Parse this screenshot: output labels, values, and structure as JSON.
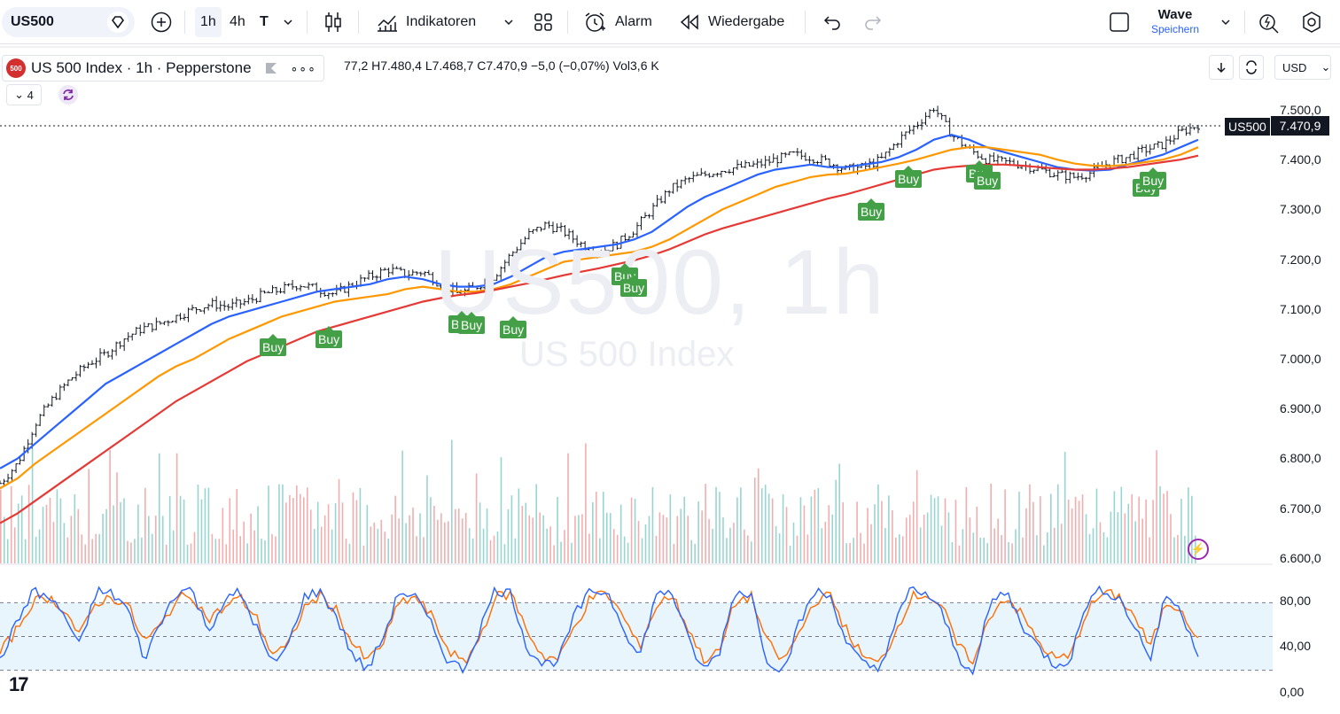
{
  "toolbar": {
    "symbol": "US500",
    "timeframes": [
      "1h",
      "4h",
      "T"
    ],
    "indicators_label": "Indikatoren",
    "alert_label": "Alarm",
    "replay_label": "Wiedergabe",
    "layout_name": "Wave",
    "save_label": "Speichern"
  },
  "legend": {
    "logo_text": "500",
    "title": "US 500 Index · 1h · Pepperstone",
    "ohlc": "77,2  H7.480,4  L7.468,7  C7.470,9  −5,0 (−0,07%)  Vol3,6 K",
    "collapsed_count": "4"
  },
  "currency": "USD",
  "watermark": {
    "symbol_tf": "US500, 1h",
    "name": "US 500 Index"
  },
  "price_tag": {
    "symbol": "US500",
    "price": "7.470,9"
  },
  "colors": {
    "ema_fast": "#2962ff",
    "ema_mid": "#ff9800",
    "ema_slow": "#e53935",
    "vol_up": "#80cbc4",
    "vol_down": "#ef9a9a",
    "osc_k": "#2962ff",
    "osc_d": "#ff6d00",
    "buy": "#43a047"
  },
  "chart_data": {
    "type": "line",
    "price_axis_ticks": [
      "7.500,0",
      "7.400,0",
      "7.300,0",
      "7.200,0",
      "7.100,0",
      "7.000,0",
      "6.900,0",
      "6.800,0",
      "6.700,0",
      "6.600,0"
    ],
    "ylim": [
      6600,
      7540
    ],
    "series": [
      {
        "name": "",
        "values": [
          6750,
          6790,
          6870,
          6920,
          6960,
          6990,
          7010,
          7040,
          7060,
          7070,
          7085,
          7100,
          7110,
          7105,
          7115,
          7130,
          7140,
          7150,
          7140,
          7130,
          7150,
          7165,
          7180,
          7170,
          7175,
          7150,
          7130,
          7145,
          7165,
          7210,
          7250,
          7270,
          7255,
          7230,
          7215,
          7230,
          7260,
          7300,
          7340,
          7360,
          7370,
          7380,
          7385,
          7390,
          7400,
          7410,
          7405,
          7395,
          7380,
          7385,
          7400,
          7440,
          7470,
          7505,
          7450,
          7420,
          7400,
          7395,
          7390,
          7380,
          7370,
          7365,
          7375,
          7395,
          7405,
          7420,
          7430,
          7455,
          7470
        ]
      },
      {
        "name": "",
        "values": [
          6780,
          6800,
          6830,
          6860,
          6890,
          6920,
          6950,
          6970,
          6990,
          7010,
          7030,
          7050,
          7070,
          7085,
          7095,
          7105,
          7115,
          7125,
          7135,
          7140,
          7145,
          7150,
          7160,
          7165,
          7160,
          7150,
          7145,
          7145,
          7150,
          7165,
          7185,
          7205,
          7215,
          7220,
          7225,
          7230,
          7240,
          7255,
          7280,
          7305,
          7325,
          7340,
          7355,
          7370,
          7380,
          7385,
          7390,
          7385,
          7385,
          7390,
          7395,
          7405,
          7420,
          7440,
          7450,
          7440,
          7425,
          7415,
          7405,
          7395,
          7385,
          7380,
          7378,
          7380,
          7390,
          7400,
          7410,
          7425,
          7440
        ]
      },
      {
        "name": "",
        "values": [
          6740,
          6760,
          6790,
          6815,
          6840,
          6865,
          6890,
          6915,
          6940,
          6965,
          6985,
          7000,
          7020,
          7040,
          7055,
          7070,
          7085,
          7095,
          7105,
          7115,
          7120,
          7125,
          7130,
          7140,
          7145,
          7140,
          7135,
          7135,
          7140,
          7150,
          7165,
          7180,
          7195,
          7200,
          7205,
          7210,
          7215,
          7225,
          7240,
          7260,
          7280,
          7300,
          7315,
          7330,
          7345,
          7355,
          7365,
          7370,
          7372,
          7378,
          7385,
          7392,
          7400,
          7410,
          7420,
          7425,
          7425,
          7420,
          7415,
          7410,
          7400,
          7392,
          7388,
          7387,
          7390,
          7395,
          7400,
          7410,
          7425
        ]
      },
      {
        "name": "",
        "values": [
          6670,
          6690,
          6715,
          6740,
          6765,
          6790,
          6815,
          6840,
          6865,
          6890,
          6915,
          6935,
          6955,
          6975,
          6995,
          7010,
          7025,
          7040,
          7055,
          7065,
          7075,
          7085,
          7095,
          7105,
          7115,
          7122,
          7128,
          7132,
          7138,
          7145,
          7152,
          7160,
          7168,
          7175,
          7182,
          7190,
          7198,
          7208,
          7220,
          7235,
          7250,
          7262,
          7272,
          7282,
          7292,
          7302,
          7312,
          7322,
          7330,
          7340,
          7350,
          7360,
          7370,
          7380,
          7385,
          7388,
          7390,
          7390,
          7388,
          7385,
          7382,
          7380,
          7380,
          7382,
          7385,
          7390,
          7395,
          7400,
          7408
        ]
      }
    ],
    "buy_signals": [
      {
        "label": "Buy"
      },
      {
        "label": "Buy"
      },
      {
        "label": "Buy"
      },
      {
        "label": "Buy"
      },
      {
        "label": "Buy"
      },
      {
        "label": "Buy"
      },
      {
        "label": "Buy"
      },
      {
        "label": "Buy"
      },
      {
        "label": "Buy"
      },
      {
        "label": "Buy"
      },
      {
        "label": "Buy"
      },
      {
        "label": "Buy"
      },
      {
        "label": "Buy"
      },
      {
        "label": "Buy"
      }
    ],
    "oscillator": {
      "ticks": [
        "80,00",
        "40,00",
        "0,00"
      ],
      "ylim": [
        0,
        100
      ],
      "band": [
        20,
        80
      ],
      "k_values": [
        30,
        60,
        90,
        85,
        70,
        40,
        90,
        88,
        75,
        30,
        60,
        90,
        92,
        55,
        80,
        90,
        60,
        25,
        40,
        85,
        90,
        70,
        35,
        20,
        50,
        90,
        85,
        60,
        30,
        20,
        55,
        92,
        88,
        40,
        25,
        30,
        70,
        90,
        90,
        60,
        30,
        85,
        92,
        50,
        20,
        35,
        90,
        88,
        30,
        20,
        60,
        90,
        85,
        45,
        25,
        20,
        60,
        92,
        88,
        70,
        30,
        20,
        80,
        90,
        60,
        40,
        25,
        30,
        80,
        92,
        85,
        60,
        30,
        88,
        70,
        35
      ],
      "d_values": [
        35,
        55,
        80,
        85,
        75,
        50,
        80,
        85,
        78,
        45,
        58,
        82,
        88,
        65,
        75,
        85,
        68,
        35,
        40,
        75,
        86,
        75,
        45,
        28,
        45,
        80,
        85,
        68,
        40,
        25,
        48,
        85,
        88,
        55,
        32,
        30,
        60,
        85,
        88,
        68,
        40,
        75,
        88,
        60,
        30,
        35,
        80,
        86,
        45,
        28,
        52,
        82,
        86,
        55,
        32,
        25,
        52,
        85,
        88,
        75,
        40,
        28,
        70,
        86,
        68,
        45,
        30,
        32,
        72,
        88,
        86,
        68,
        40,
        80,
        75,
        45
      ]
    }
  }
}
